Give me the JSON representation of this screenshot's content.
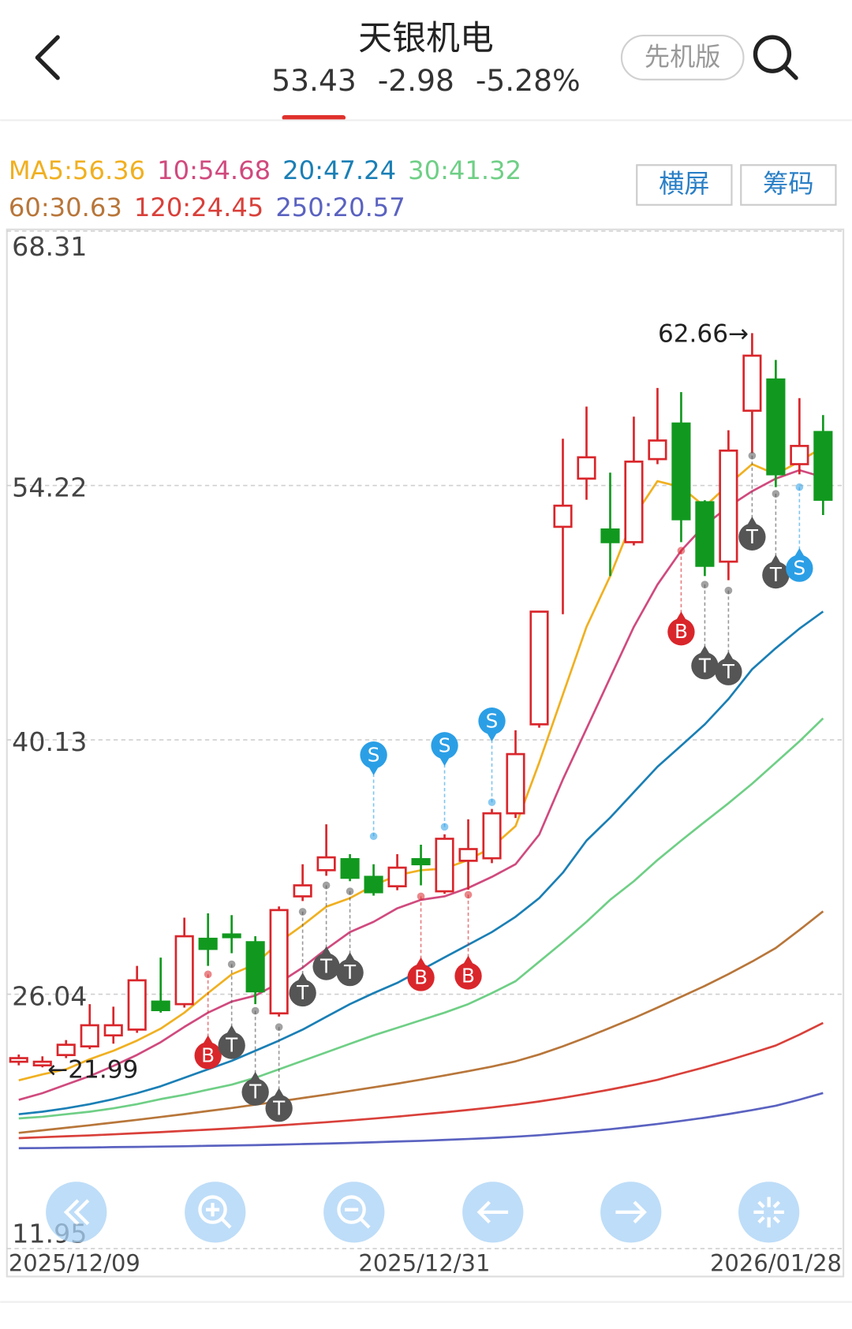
{
  "header": {
    "title": "天银机电",
    "price": 53.43,
    "change": -2.98,
    "change_percent": "-5.28%",
    "mode_button": "先机版"
  },
  "buttons": [
    "横屏",
    "筹码"
  ],
  "chart_data": {
    "type": "candlestick",
    "categories": [
      "2025/12/09",
      null,
      null,
      null,
      null,
      null,
      null,
      null,
      null,
      null,
      null,
      null,
      null,
      null,
      null,
      null,
      "2025/12/31",
      null,
      null,
      null,
      null,
      null,
      null,
      null,
      null,
      null,
      null,
      null,
      null,
      null,
      null,
      null,
      null,
      null,
      "2026/01/28"
    ],
    "open": [
      22.3,
      22.1,
      22.67,
      23.15,
      23.76,
      24.08,
      25.63,
      25.49,
      29.11,
      29.35,
      28.92,
      24.98,
      31.46,
      32.91,
      33.52,
      32.54,
      32.02,
      33.52,
      31.74,
      33.43,
      33.57,
      36.06,
      40.99,
      51.93,
      54.6,
      51.78,
      51.08,
      55.68,
      57.65,
      53.29,
      50.0,
      58.36,
      60.09,
      55.4,
      57.18
    ],
    "close": [
      22.5,
      22.3,
      23.24,
      24.32,
      24.32,
      26.81,
      25.16,
      29.25,
      28.55,
      29.2,
      26.2,
      30.7,
      32.07,
      33.62,
      32.49,
      31.69,
      33.05,
      33.24,
      34.65,
      34.08,
      36.06,
      39.34,
      47.23,
      53.1,
      55.78,
      51.08,
      55.54,
      56.71,
      52.35,
      49.77,
      56.15,
      61.41,
      54.84,
      56.41,
      53.43
    ],
    "high": [
      22.7,
      22.6,
      23.5,
      25.49,
      25.35,
      27.61,
      28.07,
      30.28,
      30.52,
      30.42,
      29.25,
      30.9,
      33.24,
      35.45,
      33.8,
      33.24,
      33.8,
      34.32,
      34.9,
      35.73,
      36.3,
      40.66,
      47.23,
      56.81,
      58.59,
      54.93,
      58.03,
      59.62,
      59.39,
      53.4,
      57.28,
      62.66,
      61.17,
      59.06,
      58.12
    ],
    "low": [
      22.1,
      21.99,
      22.5,
      23.0,
      23.3,
      23.9,
      25.02,
      25.3,
      27.61,
      28.31,
      25.49,
      24.8,
      31.2,
      32.6,
      32.3,
      31.5,
      31.8,
      32.07,
      31.6,
      31.83,
      33.3,
      35.8,
      40.8,
      47.09,
      53.43,
      49.2,
      50.9,
      55.4,
      51.08,
      49.2,
      48.97,
      56.01,
      54.13,
      54.84,
      52.58
    ],
    "up_color": "#d9262b",
    "down_color": "#11991f",
    "ylim": [
      11.95,
      68.31
    ],
    "yticks": [
      68.31,
      54.22,
      40.13,
      26.04,
      11.95
    ],
    "grid": true,
    "series": [
      {
        "name": "MA5:56.36",
        "color": "#f0b020",
        "values": [
          21.27,
          21.6,
          21.88,
          22.44,
          22.91,
          23.47,
          24.13,
          25.02,
          26.1,
          27.14,
          27.7,
          28.92,
          29.86,
          30.89,
          31.36,
          32.07,
          32.63,
          32.91,
          33.0,
          33.47,
          34.18,
          35.35,
          38.87,
          42.63,
          46.39,
          49.2,
          52.49,
          54.46,
          54.13,
          53.05,
          54.27,
          55.4,
          54.84,
          55.54,
          56.36
        ]
      },
      {
        "name": "10:54.68",
        "color": "#d04a7e",
        "values": [
          20.19,
          20.56,
          21.03,
          21.5,
          22.07,
          22.68,
          23.38,
          24.23,
          25.02,
          25.63,
          25.96,
          26.67,
          27.51,
          28.54,
          29.48,
          30.05,
          30.8,
          31.27,
          31.46,
          31.93,
          32.54,
          33.24,
          34.88,
          37.93,
          40.75,
          43.57,
          46.39,
          48.73,
          50.61,
          52.02,
          53.05,
          53.9,
          54.6,
          55.07,
          54.68
        ]
      },
      {
        "name": "20:47.24",
        "color": "#1a7fb5",
        "values": [
          19.39,
          19.53,
          19.72,
          19.95,
          20.23,
          20.56,
          20.94,
          21.41,
          21.88,
          22.35,
          22.91,
          23.47,
          24.08,
          24.79,
          25.49,
          26.1,
          26.67,
          27.37,
          28.08,
          28.78,
          29.48,
          30.33,
          31.36,
          32.77,
          34.55,
          35.82,
          37.23,
          38.64,
          39.81,
          40.99,
          42.39,
          44.04,
          45.21,
          46.29,
          47.24
        ]
      },
      {
        "name": "30:41.32",
        "color": "#6fcf86",
        "values": [
          19.16,
          19.25,
          19.39,
          19.53,
          19.72,
          19.95,
          20.23,
          20.47,
          20.75,
          21.03,
          21.41,
          21.88,
          22.35,
          22.82,
          23.29,
          23.76,
          24.18,
          24.6,
          25.02,
          25.49,
          26.1,
          26.76,
          27.84,
          28.92,
          30.05,
          31.27,
          32.3,
          33.47,
          34.55,
          35.59,
          36.62,
          37.7,
          38.87,
          40.05,
          41.32
        ]
      },
      {
        "name": "60:30.63",
        "color": "#b8763a",
        "values": [
          18.36,
          18.5,
          18.64,
          18.78,
          18.93,
          19.08,
          19.24,
          19.4,
          19.57,
          19.74,
          19.92,
          20.1,
          20.29,
          20.48,
          20.68,
          20.88,
          21.09,
          21.31,
          21.54,
          21.78,
          22.03,
          22.32,
          22.7,
          23.15,
          23.65,
          24.18,
          24.72,
          25.3,
          25.9,
          26.5,
          27.15,
          27.85,
          28.6,
          29.6,
          30.63
        ]
      },
      {
        "name": "120:24.45",
        "color": "#d9403a",
        "values": [
          18.07,
          18.12,
          18.17,
          18.22,
          18.28,
          18.34,
          18.4,
          18.47,
          18.54,
          18.61,
          18.69,
          18.77,
          18.86,
          18.95,
          19.05,
          19.15,
          19.26,
          19.38,
          19.5,
          19.63,
          19.77,
          19.92,
          20.1,
          20.3,
          20.52,
          20.76,
          21.02,
          21.3,
          21.65,
          22.0,
          22.38,
          22.78,
          23.2,
          23.8,
          24.45
        ]
      },
      {
        "name": "250:20.57",
        "color": "#5a62c0",
        "values": [
          17.51,
          17.52,
          17.54,
          17.55,
          17.57,
          17.58,
          17.6,
          17.62,
          17.64,
          17.66,
          17.68,
          17.71,
          17.74,
          17.77,
          17.8,
          17.84,
          17.88,
          17.92,
          17.97,
          18.02,
          18.08,
          18.15,
          18.23,
          18.33,
          18.44,
          18.56,
          18.7,
          18.85,
          19.02,
          19.2,
          19.4,
          19.62,
          19.86,
          20.2,
          20.57
        ]
      }
    ],
    "annotations": [
      {
        "value": 62.66,
        "label": "62.66→"
      },
      {
        "value": 21.99,
        "label": "←21.99"
      }
    ],
    "signal_colors": {
      "B": "#d9262b",
      "T": "#555555",
      "S": "#2b9fe6"
    },
    "signals": [
      null,
      null,
      null,
      null,
      null,
      null,
      null,
      null,
      {
        "label": "B",
        "price": 27.14,
        "side": "below"
      },
      {
        "label": "T",
        "price": 27.7,
        "side": "below"
      },
      {
        "label": "T",
        "price": 25.12,
        "side": "below"
      },
      {
        "label": "T",
        "price": 24.22,
        "side": "below"
      },
      {
        "label": "T",
        "price": 30.61,
        "side": "below"
      },
      {
        "label": "T",
        "price": 32.07,
        "side": "below"
      },
      {
        "label": "T",
        "price": 31.74,
        "side": "below"
      },
      {
        "label": "S",
        "price": 34.79,
        "side": "above"
      },
      null,
      {
        "label": "B",
        "price": 31.46,
        "side": "below"
      },
      {
        "label": "S",
        "price": 35.31,
        "side": "above"
      },
      {
        "label": "B",
        "price": 31.55,
        "side": "below"
      },
      {
        "label": "S",
        "price": 36.67,
        "side": "above"
      },
      null,
      null,
      null,
      null,
      null,
      null,
      null,
      {
        "label": "B",
        "price": 50.61,
        "side": "below"
      },
      {
        "label": "T",
        "price": 48.73,
        "side": "below"
      },
      {
        "label": "T",
        "price": 48.4,
        "side": "below"
      },
      {
        "label": "T",
        "price": 55.87,
        "side": "below"
      },
      {
        "label": "T",
        "price": 53.76,
        "side": "below"
      },
      {
        "label": "S",
        "price": 54.13,
        "side": "below"
      },
      null
    ]
  }
}
